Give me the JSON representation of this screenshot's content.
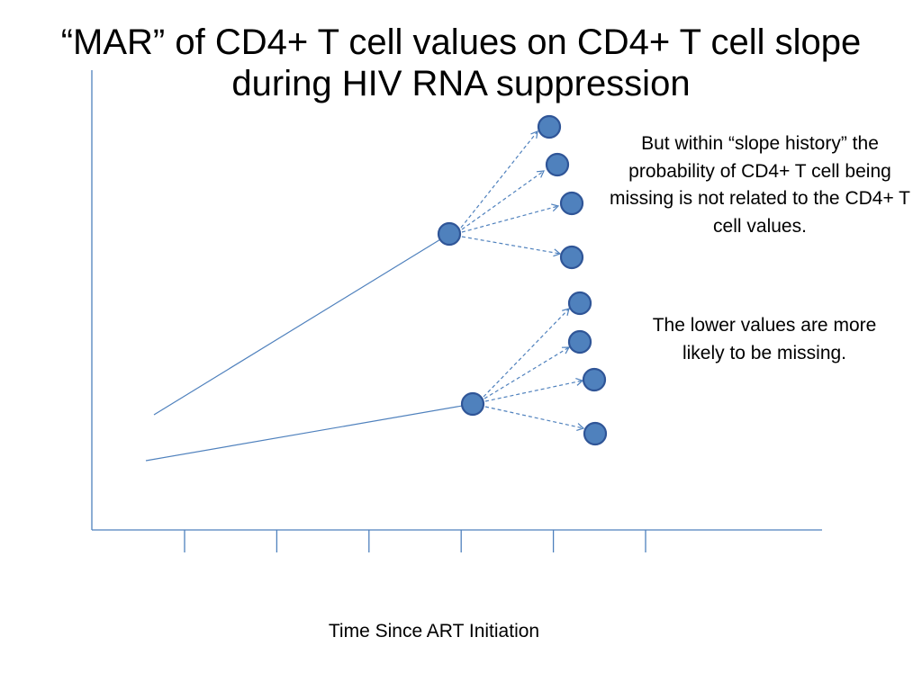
{
  "title": "“MAR” of CD4+ T cell values on CD4+ T cell slope during HIV RNA suppression",
  "notes": {
    "upper": "But within “slope history” the probability of CD4+ T cell being missing is not related to the CD4+ T cell values.",
    "lower": "The lower values are more likely to be missing."
  },
  "x_axis_label": "Time Since ART Initiation",
  "colors": {
    "axis": "#4f81bd",
    "node_fill": "#4f81bd",
    "node_stroke": "#2f5597",
    "trajectory_line": "#4f81bd",
    "dashed_arrow": "#4f81bd"
  },
  "x_axis_tick_count": 6,
  "trajectories": [
    {
      "name": "upper-trajectory",
      "imputed_values": 4
    },
    {
      "name": "lower-trajectory",
      "imputed_values": 4
    }
  ]
}
